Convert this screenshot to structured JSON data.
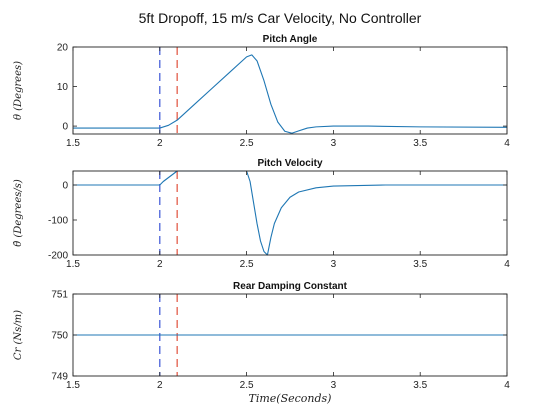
{
  "figure": {
    "title": "5ft Dropoff,   15 m/s Car Velocity,  No Controller",
    "xlabel": "Time(Seconds)"
  },
  "chart_data": [
    {
      "type": "line",
      "title": "Pitch Angle",
      "ylabel": "θ (Degrees)",
      "xlim": [
        1.5,
        4
      ],
      "ylim": [
        -2,
        20
      ],
      "xticks": [
        1.5,
        2,
        2.5,
        3,
        3.5,
        4
      ],
      "xtick_labels": [
        "1.5",
        "2",
        "2.5",
        "3",
        "3.5",
        "4"
      ],
      "yticks": [
        0,
        10,
        20
      ],
      "ytick_labels": [
        "0",
        "10",
        "20"
      ],
      "markers": [
        {
          "x": 2.0,
          "color": "#3b55d6"
        },
        {
          "x": 2.1,
          "color": "#e0503c"
        }
      ],
      "series": [
        {
          "color": "#1f77b4",
          "x": [
            1.5,
            2.0,
            2.05,
            2.1,
            2.2,
            2.3,
            2.4,
            2.5,
            2.53,
            2.56,
            2.6,
            2.64,
            2.68,
            2.72,
            2.76,
            2.8,
            2.85,
            2.9,
            3.0,
            3.2,
            3.5,
            4.0
          ],
          "y": [
            -0.5,
            -0.5,
            0.2,
            1.5,
            5.5,
            9.5,
            13.5,
            17.5,
            18.0,
            16.5,
            11.5,
            5.5,
            1.0,
            -1.3,
            -1.8,
            -1.2,
            -0.5,
            -0.2,
            0.0,
            0.0,
            -0.2,
            -0.3
          ]
        }
      ]
    },
    {
      "type": "line",
      "title": "Pitch Velocity",
      "ylabel": "θ̇ (Degrees/s)",
      "xlim": [
        1.5,
        4
      ],
      "ylim": [
        -200,
        40
      ],
      "xticks": [
        1.5,
        2,
        2.5,
        3,
        3.5,
        4
      ],
      "xtick_labels": [
        "1.5",
        "2",
        "2.5",
        "3",
        "3.5",
        "4"
      ],
      "yticks": [
        -200,
        -100,
        0
      ],
      "ytick_labels": [
        "-200",
        "-100",
        "0"
      ],
      "markers": [
        {
          "x": 2.0,
          "color": "#3b55d6"
        },
        {
          "x": 2.1,
          "color": "#e0503c"
        }
      ],
      "series": [
        {
          "color": "#1f77b4",
          "x": [
            1.5,
            2.0,
            2.02,
            2.1,
            2.3,
            2.5,
            2.52,
            2.54,
            2.56,
            2.58,
            2.6,
            2.62,
            2.64,
            2.66,
            2.7,
            2.75,
            2.8,
            2.9,
            3.0,
            3.3,
            4.0
          ],
          "y": [
            0,
            0,
            10,
            40,
            40,
            40,
            10,
            -50,
            -110,
            -160,
            -190,
            -200,
            -150,
            -110,
            -65,
            -35,
            -20,
            -8,
            -3,
            0,
            0
          ]
        }
      ]
    },
    {
      "type": "line",
      "title": "Rear Damping Constant",
      "ylabel": "Cr (Ns/m)",
      "xlim": [
        1.5,
        4
      ],
      "ylim": [
        749,
        751
      ],
      "xticks": [
        1.5,
        2,
        2.5,
        3,
        3.5,
        4
      ],
      "xtick_labels": [
        "1.5",
        "2",
        "2.5",
        "3",
        "3.5",
        "4"
      ],
      "yticks": [
        749,
        750,
        751
      ],
      "ytick_labels": [
        "749",
        "750",
        "751"
      ],
      "markers": [
        {
          "x": 2.0,
          "color": "#3b55d6"
        },
        {
          "x": 2.1,
          "color": "#e0503c"
        }
      ],
      "series": [
        {
          "color": "#1f77b4",
          "x": [
            1.5,
            4.0
          ],
          "y": [
            750,
            750
          ]
        }
      ]
    }
  ]
}
